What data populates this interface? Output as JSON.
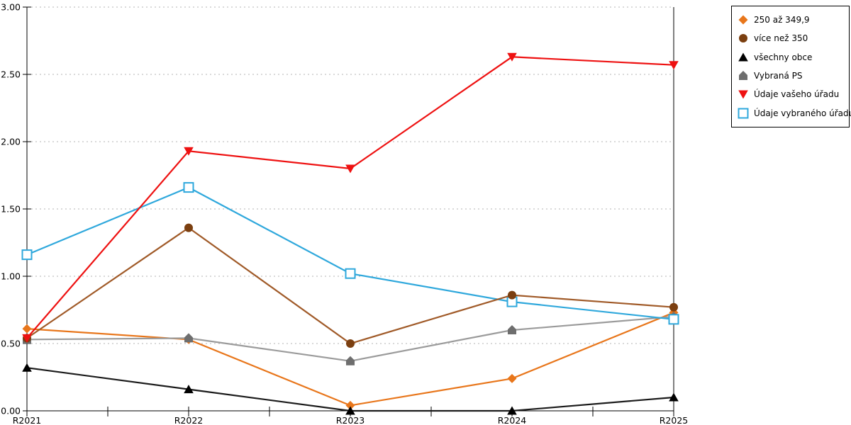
{
  "chart_data": {
    "type": "line",
    "title": "",
    "xlabel": "",
    "ylabel": "",
    "categories": [
      "R2021",
      "R2022",
      "R2023",
      "R2024",
      "R2025"
    ],
    "series": [
      {
        "name": "250 až 349,9",
        "marker": "diamond",
        "color": "#E8761B",
        "line_color": "#E8761B",
        "values": [
          0.61,
          0.53,
          0.04,
          0.24,
          0.73
        ]
      },
      {
        "name": "více než 350",
        "marker": "circle",
        "color": "#7B3F10",
        "line_color": "#A05A28",
        "values": [
          0.54,
          1.36,
          0.5,
          0.86,
          0.77
        ]
      },
      {
        "name": "všechny obce",
        "marker": "triangle-up",
        "color": "#000000",
        "line_color": "#1A1A1A",
        "values": [
          0.32,
          0.16,
          0.0,
          0.0,
          0.1
        ]
      },
      {
        "name": "Vybraná PS",
        "marker": "pentagon",
        "color": "#6E6E6E",
        "line_color": "#9B9B9B",
        "values": [
          0.53,
          0.54,
          0.37,
          0.6,
          0.7
        ]
      },
      {
        "name": "Údaje vašeho úřadu",
        "marker": "triangle-down",
        "color": "#EE1111",
        "line_color": "#EE1111",
        "values": [
          0.54,
          1.93,
          1.8,
          2.63,
          2.57
        ]
      },
      {
        "name": "Údaje vybraného úřadu",
        "marker": "square-open",
        "color": "#2FA8DC",
        "line_color": "#2FA8DC",
        "values": [
          1.16,
          1.66,
          1.02,
          0.81,
          0.68
        ]
      }
    ],
    "ylim": [
      0,
      3
    ],
    "y_tick_step": 0.5,
    "y_tick_labels": [
      "0.00",
      "0.50",
      "1.00",
      "1.50",
      "2.00",
      "2.50",
      "3.00"
    ],
    "x_minor_ticks": true,
    "grid": "dashed-horizontal",
    "legend_position": "top-right",
    "draw_order": [
      0,
      3,
      5,
      2,
      1,
      4
    ]
  },
  "colors": {
    "background": "#FFFFFF",
    "grid": "#B3B3B3",
    "axis": "#000000",
    "legend_border": "#000000",
    "text": "#000000"
  }
}
